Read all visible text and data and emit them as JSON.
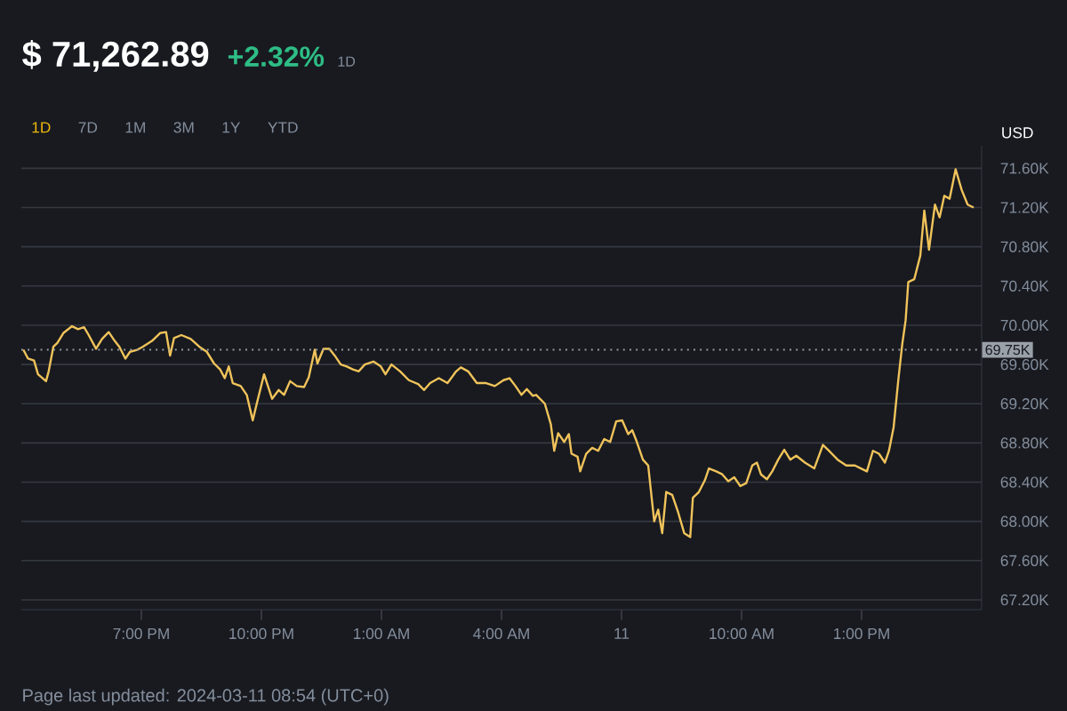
{
  "chart_data": {
    "type": "line",
    "title": "$ 71,262.89",
    "subtitle": "+2.32%",
    "ylabel": "USD",
    "annotations": [
      "1D",
      "1D",
      "7D",
      "1M",
      "3M",
      "1Y",
      "YTD",
      "Page last updated: 2024-03-11 08:54 (UTC+0)"
    ],
    "color": "#f0c35a",
    "x": [
      "2024-03-10T16:03",
      "2024-03-10T16:10",
      "2024-03-10T16:19",
      "2024-03-10T16:25",
      "2024-03-10T16:37",
      "2024-03-10T16:41",
      "2024-03-10T16:48",
      "2024-03-10T16:54",
      "2024-03-10T17:03",
      "2024-03-10T17:16",
      "2024-03-10T17:25",
      "2024-03-10T17:34",
      "2024-03-10T17:41",
      "2024-03-10T17:52",
      "2024-03-10T18:01",
      "2024-03-10T18:11",
      "2024-03-10T18:20",
      "2024-03-10T18:27",
      "2024-03-10T18:36",
      "2024-03-10T18:43",
      "2024-03-10T18:54",
      "2024-03-10T19:02",
      "2024-03-10T19:16",
      "2024-03-10T19:28",
      "2024-03-10T19:37",
      "2024-03-10T19:43",
      "2024-03-10T19:49",
      "2024-03-10T20:00",
      "2024-03-10T20:14",
      "2024-03-10T20:27",
      "2024-03-10T20:38",
      "2024-03-10T20:49",
      "2024-03-10T20:58",
      "2024-03-10T21:05",
      "2024-03-10T21:11",
      "2024-03-10T21:17",
      "2024-03-10T21:29",
      "2024-03-10T21:38",
      "2024-03-10T21:47",
      "2024-03-10T21:53",
      "2024-03-10T22:04",
      "2024-03-10T22:16",
      "2024-03-10T22:26",
      "2024-03-10T22:34",
      "2024-03-10T22:43",
      "2024-03-10T22:53",
      "2024-03-10T23:04",
      "2024-03-10T23:11",
      "2024-03-10T23:20",
      "2024-03-10T23:24",
      "2024-03-10T23:33",
      "2024-03-10T23:42",
      "2024-03-10T23:50",
      "2024-03-10T23:59",
      "2024-03-11T00:08",
      "2024-03-11T00:17",
      "2024-03-11T00:26",
      "2024-03-11T00:35",
      "2024-03-11T00:48",
      "2024-03-11T00:59",
      "2024-03-11T01:06",
      "2024-03-11T01:15",
      "2024-03-11T01:28",
      "2024-03-11T01:41",
      "2024-03-11T01:55",
      "2024-03-11T02:04",
      "2024-03-11T02:13",
      "2024-03-11T02:26",
      "2024-03-11T02:39",
      "2024-03-11T02:52",
      "2024-03-11T02:59",
      "2024-03-11T03:10",
      "2024-03-11T03:23",
      "2024-03-11T03:37",
      "2024-03-11T03:50",
      "2024-03-11T04:03",
      "2024-03-11T04:12",
      "2024-03-11T04:21",
      "2024-03-11T04:30",
      "2024-03-11T04:38",
      "2024-03-11T04:47",
      "2024-03-11T04:52",
      "2024-03-11T05:05",
      "2024-03-11T05:14",
      "2024-03-11T05:19",
      "2024-03-11T05:25",
      "2024-03-11T05:34",
      "2024-03-11T05:41",
      "2024-03-11T05:45",
      "2024-03-11T05:54",
      "2024-03-11T05:58",
      "2024-03-11T06:07",
      "2024-03-11T06:16",
      "2024-03-11T06:25",
      "2024-03-11T06:34",
      "2024-03-11T06:43",
      "2024-03-11T06:52",
      "2024-03-11T07:01",
      "2024-03-11T07:10",
      "2024-03-11T07:16",
      "2024-03-11T07:23",
      "2024-03-11T07:32",
      "2024-03-11T07:40",
      "2024-03-11T07:49",
      "2024-03-11T07:55",
      "2024-03-11T08:01",
      "2024-03-11T08:07",
      "2024-03-11T08:16",
      "2024-03-11T08:25",
      "2024-03-11T08:34",
      "2024-03-11T08:43",
      "2024-03-11T08:47",
      "2024-03-11T08:56",
      "2024-03-11T09:05",
      "2024-03-11T09:11",
      "2024-03-11T09:22",
      "2024-03-11T09:31",
      "2024-03-11T09:40",
      "2024-03-11T09:49",
      "2024-03-11T09:58",
      "2024-03-11T10:07",
      "2024-03-11T10:16",
      "2024-03-11T10:23",
      "2024-03-11T10:29",
      "2024-03-11T10:38",
      "2024-03-11T10:46",
      "2024-03-11T10:55",
      "2024-03-11T11:04",
      "2024-03-11T11:13",
      "2024-03-11T11:22",
      "2024-03-11T11:35",
      "2024-03-11T11:49",
      "2024-03-11T12:02",
      "2024-03-11T12:11",
      "2024-03-11T12:24",
      "2024-03-11T12:37",
      "2024-03-11T12:50",
      "2024-03-11T12:59",
      "2024-03-11T13:08",
      "2024-03-11T13:17",
      "2024-03-11T13:26",
      "2024-03-11T13:35",
      "2024-03-11T13:41",
      "2024-03-11T13:48",
      "2024-03-11T13:55",
      "2024-03-11T14:01",
      "2024-03-11T14:06",
      "2024-03-11T14:10",
      "2024-03-11T14:19",
      "2024-03-11T14:28",
      "2024-03-11T14:34",
      "2024-03-11T14:41",
      "2024-03-11T14:50",
      "2024-03-11T14:57",
      "2024-03-11T15:04",
      "2024-03-11T15:12",
      "2024-03-11T15:21",
      "2024-03-11T15:30",
      "2024-03-11T15:39",
      "2024-03-11T15:48"
    ],
    "values": [
      69750,
      69660,
      69640,
      69500,
      69430,
      69530,
      69780,
      69820,
      69920,
      69990,
      69960,
      69980,
      69900,
      69760,
      69860,
      69930,
      69840,
      69780,
      69660,
      69730,
      69750,
      69780,
      69840,
      69920,
      69930,
      69690,
      69870,
      69900,
      69860,
      69780,
      69730,
      69610,
      69550,
      69460,
      69580,
      69410,
      69380,
      69290,
      69030,
      69200,
      69500,
      69250,
      69340,
      69290,
      69430,
      69380,
      69370,
      69470,
      69750,
      69610,
      69760,
      69760,
      69690,
      69600,
      69580,
      69550,
      69530,
      69600,
      69630,
      69580,
      69500,
      69600,
      69530,
      69440,
      69400,
      69340,
      69410,
      69460,
      69410,
      69530,
      69570,
      69530,
      69410,
      69410,
      69380,
      69440,
      69460,
      69380,
      69290,
      69350,
      69280,
      69290,
      69200,
      68990,
      68720,
      68900,
      68810,
      68890,
      68690,
      68660,
      68510,
      68690,
      68750,
      68720,
      68840,
      68810,
      69020,
      69030,
      68890,
      68930,
      68810,
      68630,
      68570,
      68000,
      68120,
      67880,
      68300,
      68270,
      68090,
      67880,
      67840,
      68240,
      68300,
      68420,
      68540,
      68510,
      68480,
      68410,
      68450,
      68360,
      68390,
      68570,
      68600,
      68480,
      68430,
      68510,
      68630,
      68730,
      68630,
      68670,
      68600,
      68540,
      68780,
      68720,
      68630,
      68570,
      68570,
      68540,
      68510,
      68720,
      68690,
      68600,
      68720,
      68960,
      69440,
      69810,
      70050,
      70440,
      70470,
      70710,
      71170,
      70770,
      71230,
      71100,
      71320,
      71290,
      71590,
      71380,
      71230,
      71200
    ],
    "xlim": [
      "2024-03-10T16:00",
      "2024-03-11T16:00"
    ],
    "xticks": [
      {
        "value": "2024-03-10T19:00",
        "label": "7:00 PM"
      },
      {
        "value": "2024-03-10T22:00",
        "label": "10:00 PM"
      },
      {
        "value": "2024-03-11T01:00",
        "label": "1:00 AM"
      },
      {
        "value": "2024-03-11T04:00",
        "label": "4:00 AM"
      },
      {
        "value": "2024-03-11T07:00",
        "label": "11"
      },
      {
        "value": "2024-03-11T10:00",
        "label": "10:00 AM"
      },
      {
        "value": "2024-03-11T13:00",
        "label": "1:00 PM"
      }
    ],
    "ylim": [
      67100,
      71830
    ],
    "yticks": [
      {
        "value": 67200,
        "label": "67.20K"
      },
      {
        "value": 67600,
        "label": "67.60K"
      },
      {
        "value": 68000,
        "label": "68.00K"
      },
      {
        "value": 68400,
        "label": "68.40K"
      },
      {
        "value": 68800,
        "label": "68.80K"
      },
      {
        "value": 69200,
        "label": "69.20K"
      },
      {
        "value": 69600,
        "label": "69.60K"
      },
      {
        "value": 70000,
        "label": "70.00K"
      },
      {
        "value": 70400,
        "label": "70.40K"
      },
      {
        "value": 70800,
        "label": "70.80K"
      },
      {
        "value": 71200,
        "label": "71.20K"
      },
      {
        "value": 71600,
        "label": "71.60K"
      }
    ],
    "grid": "y",
    "ref_lines": [
      {
        "axis": "y",
        "value": 69750,
        "label": "69.75K",
        "color": "#9aa0a8",
        "line_style": "dotted"
      }
    ]
  }
}
